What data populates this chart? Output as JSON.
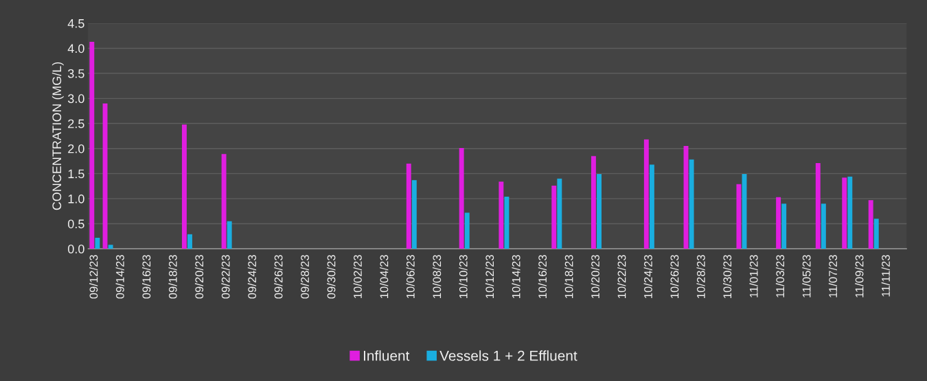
{
  "chart_data": {
    "type": "bar",
    "ylabel": "CONCENTRATION (MG/L)",
    "categories": [
      "09/12/23",
      null,
      "09/14/23",
      null,
      "09/16/23",
      null,
      "09/18/23",
      null,
      "09/20/23",
      null,
      "09/22/23",
      null,
      "09/24/23",
      null,
      "09/26/23",
      null,
      "09/28/23",
      null,
      "09/30/23",
      null,
      "10/02/23",
      null,
      "10/04/23",
      null,
      "10/06/23",
      null,
      "10/08/23",
      null,
      "10/10/23",
      null,
      "10/12/23",
      null,
      "10/14/23",
      null,
      "10/16/23",
      null,
      "10/18/23",
      null,
      "10/20/23",
      null,
      "10/22/23",
      null,
      "10/24/23",
      null,
      "10/26/23",
      null,
      "10/28/23",
      null,
      "10/30/23",
      null,
      "11/01/23",
      null,
      "11/03/23",
      null,
      "11/05/23",
      null,
      "11/07/23",
      null,
      "11/09/23",
      null,
      "11/11/23",
      null
    ],
    "series": [
      {
        "name": "Influent",
        "color": "#e01ee0",
        "values": [
          4.13,
          2.9,
          null,
          null,
          null,
          null,
          null,
          2.48,
          null,
          null,
          1.89,
          null,
          null,
          null,
          null,
          null,
          null,
          null,
          null,
          null,
          null,
          null,
          null,
          null,
          1.7,
          null,
          null,
          null,
          2.01,
          null,
          null,
          1.34,
          null,
          null,
          null,
          1.26,
          null,
          null,
          1.85,
          null,
          null,
          null,
          2.18,
          null,
          null,
          2.05,
          null,
          null,
          null,
          1.29,
          null,
          null,
          1.03,
          null,
          null,
          1.71,
          null,
          1.42,
          null,
          0.97,
          null,
          null
        ]
      },
      {
        "name": "Vessels 1 + 2 Effluent",
        "color": "#1aaee0",
        "values": [
          0.22,
          0.08,
          null,
          null,
          null,
          null,
          null,
          0.29,
          null,
          null,
          0.55,
          null,
          null,
          null,
          null,
          null,
          null,
          null,
          null,
          null,
          null,
          null,
          null,
          null,
          1.37,
          null,
          null,
          null,
          0.72,
          null,
          null,
          1.04,
          null,
          null,
          null,
          1.4,
          null,
          null,
          1.49,
          null,
          null,
          null,
          1.68,
          null,
          null,
          1.78,
          null,
          null,
          null,
          1.49,
          null,
          null,
          0.9,
          null,
          null,
          0.9,
          null,
          1.44,
          null,
          0.6,
          null,
          null
        ]
      }
    ],
    "ylim": [
      0,
      4.5
    ],
    "yticks": [
      {
        "value": 0,
        "label": "0.0"
      },
      {
        "value": 0.5,
        "label": "0.5"
      },
      {
        "value": 1,
        "label": "1.0"
      },
      {
        "value": 1.5,
        "label": "1.5"
      },
      {
        "value": 2,
        "label": "2.0"
      },
      {
        "value": 2.5,
        "label": "2.5"
      },
      {
        "value": 3,
        "label": "3.0"
      },
      {
        "value": 3.5,
        "label": "3.5"
      },
      {
        "value": 4,
        "label": "4.0"
      },
      {
        "value": 4.5,
        "label": "4.5"
      }
    ],
    "grid": "y",
    "legend": "bottom"
  }
}
